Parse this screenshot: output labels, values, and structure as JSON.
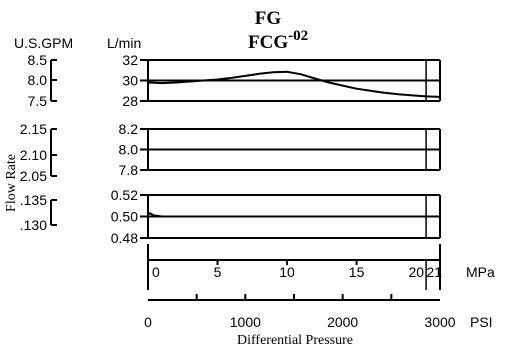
{
  "chart_data": {
    "type": "line",
    "title_line1": "FG",
    "title_line2_base": "FCG",
    "title_line2_suffix": "-02",
    "left_unit_label": "U.S.GPM",
    "right_unit_label": "L/min",
    "ylabel": "Flow Rate",
    "xlabel": "Differential Pressure",
    "panels": [
      {
        "gpm_ticks": [
          "8.5",
          "8.0",
          "7.5"
        ],
        "lmin_ticks": [
          "32",
          "30",
          "28"
        ],
        "ylim_lmin": [
          28,
          32
        ],
        "series": {
          "mpa": [
            0,
            1,
            2,
            3,
            4,
            5,
            6,
            7,
            8,
            9,
            10,
            11,
            12,
            13,
            14,
            15,
            16,
            17,
            18,
            19,
            20,
            21
          ],
          "lmin": [
            29.8,
            29.75,
            29.8,
            29.9,
            30.0,
            30.1,
            30.25,
            30.45,
            30.65,
            30.8,
            30.85,
            30.6,
            30.2,
            29.8,
            29.5,
            29.2,
            29.0,
            28.8,
            28.65,
            28.55,
            28.45,
            28.4
          ]
        }
      },
      {
        "gpm_ticks": [
          "2.15",
          "2.10",
          "2.05"
        ],
        "lmin_ticks": [
          "8.2",
          "8.0",
          "7.8"
        ],
        "ylim_lmin": [
          7.8,
          8.2
        ],
        "series": {
          "mpa": [],
          "lmin": []
        }
      },
      {
        "gpm_ticks": [
          ".135",
          ".130"
        ],
        "lmin_ticks": [
          "0.52",
          "0.50",
          "0.48"
        ],
        "ylim_lmin": [
          0.48,
          0.52
        ],
        "series": {
          "mpa": [
            0,
            0.15,
            0.4,
            1,
            3,
            6,
            10,
            15,
            21
          ],
          "lmin": [
            0.502,
            0.503,
            0.501,
            0.5,
            0.5,
            0.5,
            0.5,
            0.5,
            0.5
          ]
        }
      }
    ],
    "mpa_axis": {
      "unit": "MPa",
      "ticks": [
        "0",
        "5",
        "10",
        "15",
        "20",
        "21"
      ],
      "values": [
        0,
        5,
        10,
        15,
        20,
        21
      ]
    },
    "psi_axis": {
      "unit": "PSI",
      "ticks": [
        "0",
        "1000",
        "2000",
        "3000"
      ],
      "values": [
        0,
        1000,
        2000,
        3000
      ]
    }
  }
}
